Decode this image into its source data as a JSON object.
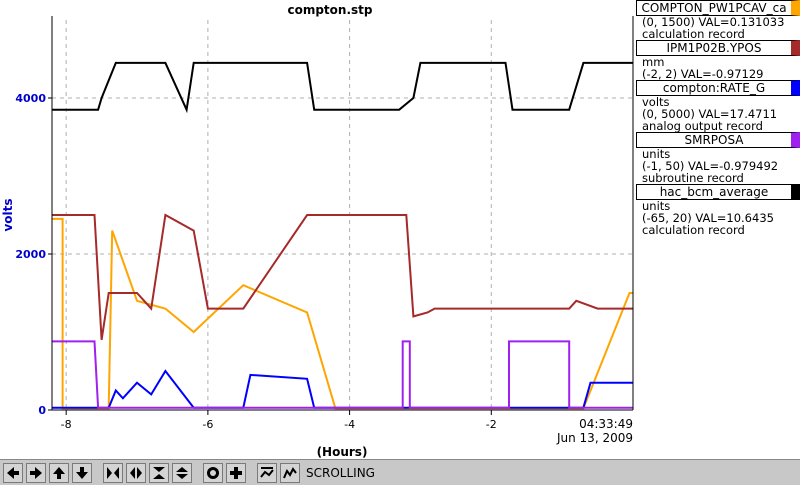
{
  "chart_data": {
    "type": "line",
    "title": "compton.stp",
    "xlabel": "(Hours)",
    "ylabel": "volts",
    "xlim": [
      -8.2,
      0
    ],
    "ylim": [
      0,
      5000
    ],
    "xticks": [
      -8,
      -6,
      -4,
      -2
    ],
    "yticks": [
      0,
      2000,
      4000
    ],
    "x_end_time": "04:33:49",
    "x_end_date": "Jun 13, 2009",
    "grid": true,
    "series": [
      {
        "name": "COMPTON_PW1PCAV_ca",
        "color": "#ffa500",
        "range": "(0, 1500)",
        "val": "VAL=0.131033",
        "desc": "calculation record",
        "x": [
          -8.2,
          -8.05,
          -8.05,
          -7.4,
          -7.35,
          -7.0,
          -6.6,
          -6.2,
          -5.5,
          -4.6,
          -4.2,
          -2.0,
          -0.7,
          -0.05,
          0
        ],
        "y": [
          2450,
          2450,
          20,
          20,
          2300,
          1400,
          1300,
          1000,
          1600,
          1250,
          20,
          20,
          20,
          1500,
          1500
        ]
      },
      {
        "name": "IPM1P02B.YPOS",
        "color": "#a52a2a",
        "range": "(-2, 2)",
        "val": "VAL=-0.97129",
        "desc": "mm",
        "x": [
          -8.2,
          -7.6,
          -7.5,
          -7.4,
          -7.0,
          -6.8,
          -6.6,
          -6.2,
          -6.0,
          -5.5,
          -4.6,
          -3.2,
          -3.1,
          -2.9,
          -2.8,
          -2.5,
          -1.6,
          -0.9,
          -0.8,
          -0.5,
          0
        ],
        "y": [
          2500,
          2500,
          900,
          1500,
          1500,
          1300,
          2500,
          2300,
          1300,
          1300,
          2500,
          2500,
          1200,
          1250,
          1300,
          1300,
          1300,
          1300,
          1400,
          1300,
          1300
        ]
      },
      {
        "name": "compton:RATE_G",
        "color": "#0000ff",
        "range": "(0, 5000)",
        "val": "VAL=17.4711",
        "desc": "volts",
        "x": [
          -8.2,
          -7.4,
          -7.3,
          -7.2,
          -7.0,
          -6.8,
          -6.6,
          -6.2,
          -5.5,
          -5.4,
          -4.6,
          -4.5,
          -0.7,
          -0.6,
          0
        ],
        "y": [
          30,
          30,
          250,
          150,
          350,
          200,
          500,
          30,
          30,
          450,
          400,
          30,
          30,
          350,
          350
        ]
      },
      {
        "name": "SMRPOSA",
        "color": "#a020f0",
        "range": "(-1, 50)",
        "val": "VAL=-0.979492",
        "desc": "units",
        "x": [
          -8.2,
          -7.6,
          -7.6,
          -7.55,
          -7.55,
          -3.25,
          -3.25,
          -3.15,
          -3.15,
          -1.75,
          -1.75,
          -0.9,
          -0.9,
          0
        ],
        "y": [
          880,
          880,
          880,
          30,
          30,
          30,
          880,
          880,
          30,
          30,
          880,
          880,
          30,
          30
        ]
      },
      {
        "name": "hac_bcm_average",
        "color": "#000000",
        "range": "(-65, 20)",
        "val": "VAL=10.6435",
        "desc": "units",
        "x": [
          -8.2,
          -7.55,
          -7.5,
          -7.3,
          -7.2,
          -6.6,
          -6.3,
          -6.2,
          -5.5,
          -4.6,
          -4.5,
          -3.3,
          -3.1,
          -3.0,
          -1.8,
          -1.7,
          -0.9,
          -0.7,
          0
        ],
        "y": [
          3850,
          3850,
          4000,
          4450,
          4450,
          4450,
          3850,
          4450,
          4450,
          4450,
          3850,
          3850,
          4000,
          4450,
          4450,
          3850,
          3850,
          4450,
          4450
        ]
      }
    ],
    "extra_desc": {
      "COMPTON_PW1PCAV_ca": "calculation record",
      "IPM1P02B.YPOS": "",
      "compton:RATE_G": "analog output record",
      "SMRPOSA": "subroutine record",
      "hac_bcm_average": "calculation record"
    }
  },
  "legend": [
    {
      "name": "COMPTON_PW1PCAV_ca",
      "color": "#ffa500",
      "line1": "(0, 1500) VAL=0.131033",
      "line2": "calculation record"
    },
    {
      "name": "IPM1P02B.YPOS",
      "color": "#a52a2a",
      "line1": "mm",
      "line2": "(-2, 2) VAL=-0.97129"
    },
    {
      "name": "compton:RATE_G",
      "color": "#0000ff",
      "line1": "volts",
      "line2": "(0, 5000) VAL=17.4711",
      "line3": "analog output record"
    },
    {
      "name": "SMRPOSA",
      "color": "#a020f0",
      "line1": "units",
      "line2": "(-1, 50) VAL=-0.979492",
      "line3": "subroutine record"
    },
    {
      "name": "hac_bcm_average",
      "color": "#000000",
      "line1": "units",
      "line2": "(-65, 20) VAL=10.6435",
      "line3": "calculation record"
    }
  ],
  "toolbar": {
    "status": "SCROLLING",
    "icons": [
      "arrow-left-icon",
      "arrow-right-icon",
      "arrow-up-icon",
      "arrow-down-icon",
      "zoom-in-x-icon",
      "zoom-out-x-icon",
      "zoom-in-y-icon",
      "zoom-out-y-icon",
      "record-icon",
      "add-icon",
      "autoscale-icon",
      "scroll-icon"
    ]
  }
}
